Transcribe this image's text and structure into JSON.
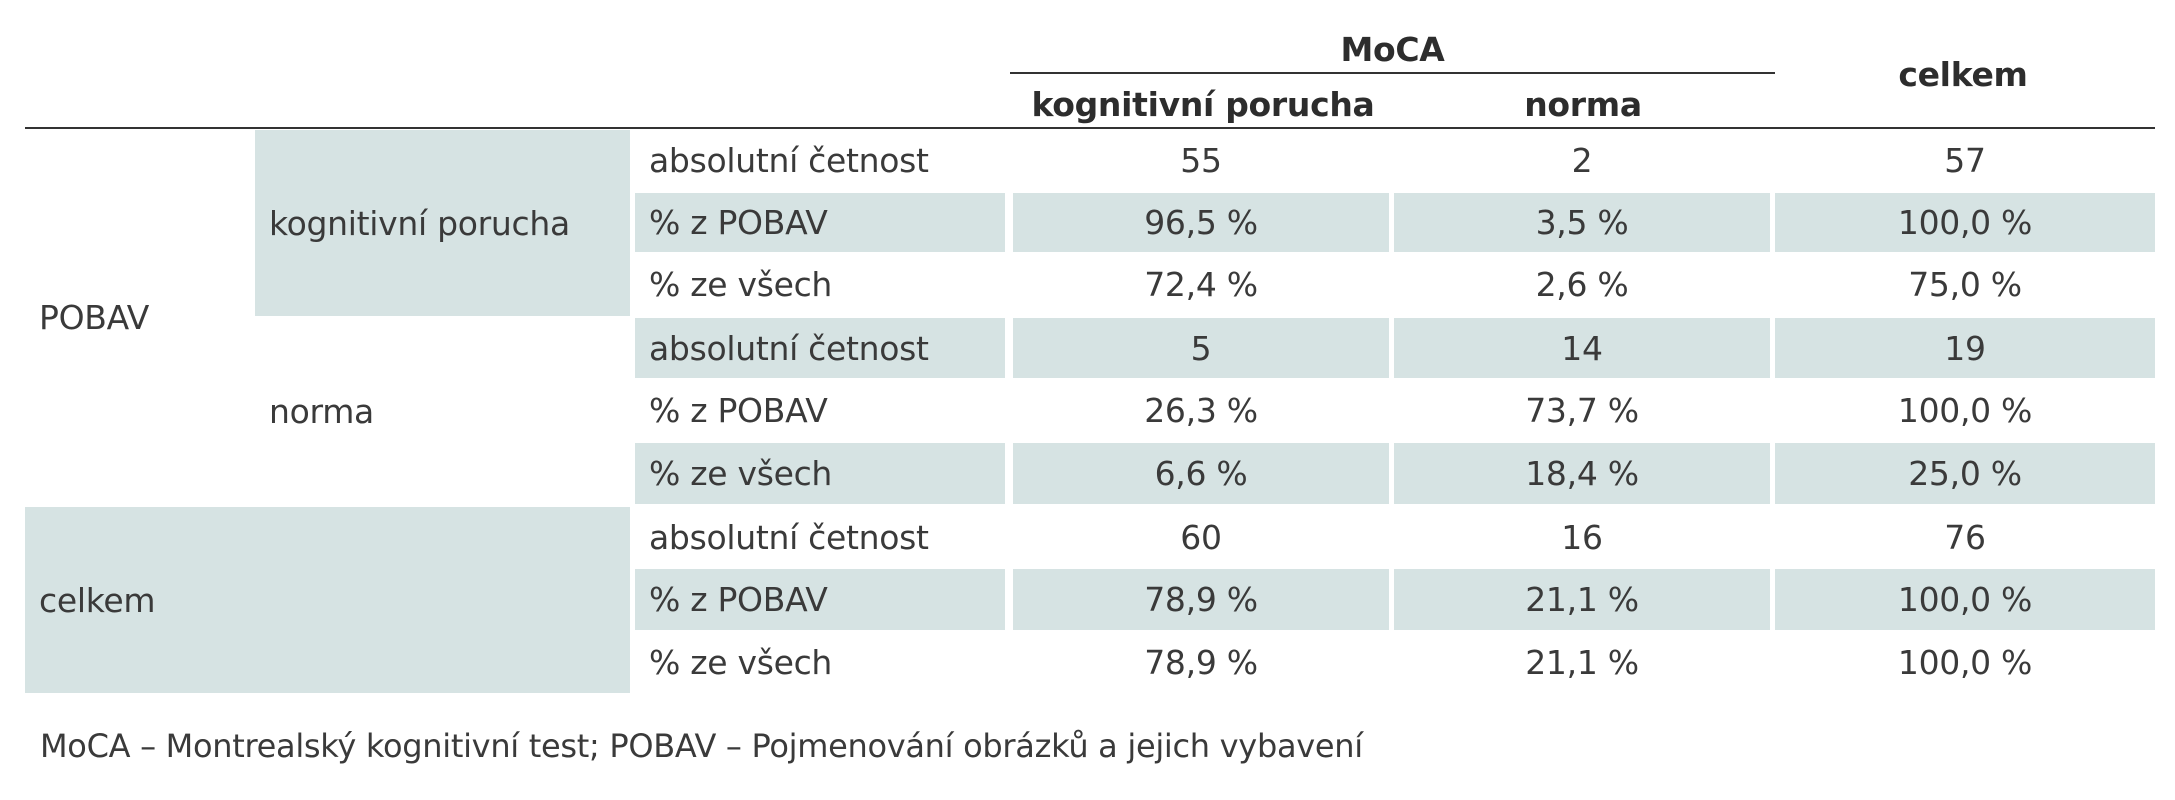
{
  "table": {
    "header": {
      "group_label": "MoCA",
      "col1": "kognitivní porucha",
      "col2": "norma",
      "total": "celkem"
    },
    "row_groups": {
      "pobav": "POBAV",
      "celkem": "celkem"
    },
    "sub_groups": {
      "kognitivni": "kognitivní porucha",
      "norma": "norma"
    },
    "rows": [
      {
        "measure": "absolutní četnost",
        "kog": "55",
        "norma": "2",
        "total": "57"
      },
      {
        "measure": "% z POBAV",
        "kog": "96,5 %",
        "norma": "3,5 %",
        "total": "100,0 %"
      },
      {
        "measure": "% ze všech",
        "kog": "72,4 %",
        "norma": "2,6 %",
        "total": "75,0 %"
      },
      {
        "measure": "absolutní četnost",
        "kog": "5",
        "norma": "14",
        "total": "19"
      },
      {
        "measure": "% z POBAV",
        "kog": "26,3 %",
        "norma": "73,7 %",
        "total": "100,0 %"
      },
      {
        "measure": "% ze všech",
        "kog": "6,6 %",
        "norma": "18,4 %",
        "total": "25,0 %"
      },
      {
        "measure": "absolutní četnost",
        "kog": "60",
        "norma": "16",
        "total": "76"
      },
      {
        "measure": "% z POBAV",
        "kog": "78,9 %",
        "norma": "21,1 %",
        "total": "100,0 %"
      },
      {
        "measure": "% ze všech",
        "kog": "78,9 %",
        "norma": "21,1 %",
        "total": "100,0 %"
      }
    ]
  },
  "footnote": "MoCA – Montrealský kognitivní test; POBAV – Pojmenování obrázků a jejich vybavení",
  "colors": {
    "shade": "#d6e3e3",
    "text": "#3a3a3a",
    "rule": "#333333"
  }
}
